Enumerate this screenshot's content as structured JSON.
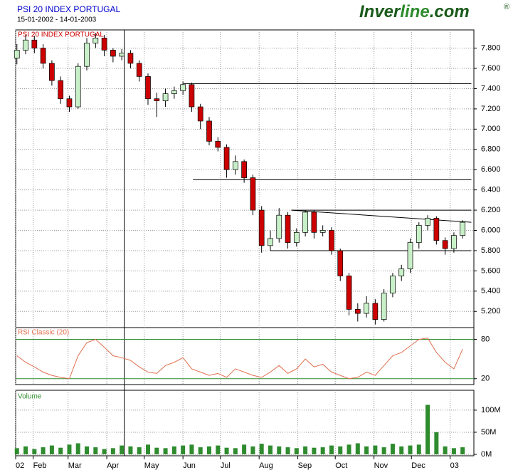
{
  "header": {
    "title": "PSI 20 INDEX PORTUGAL",
    "subtitle": "15-01-2002 - 14-01-2003",
    "logo": [
      "Inver",
      "line",
      ".com",
      "®"
    ]
  },
  "chart_data": [
    {
      "type": "candlestick",
      "label": "PSI 20 INDEX PORTUGAL",
      "up_color": "#c8f0c8",
      "down_color": "#cc0000",
      "x": [
        18,
        25,
        32,
        39,
        46,
        53,
        60,
        67,
        74,
        81,
        88,
        95,
        102,
        109,
        116,
        123,
        130,
        137,
        144,
        151,
        158,
        165,
        172,
        179,
        186,
        193,
        200,
        207,
        214,
        221,
        228,
        235,
        242,
        249,
        256,
        263,
        270,
        277,
        284,
        291,
        298,
        305,
        312,
        319,
        326,
        333,
        340,
        347,
        354,
        361,
        368,
        375
      ],
      "open": [
        7.7,
        7.78,
        7.88,
        7.8,
        7.65,
        7.48,
        7.3,
        7.22,
        7.62,
        7.85,
        7.9,
        7.78,
        7.72,
        7.75,
        7.65,
        7.52,
        7.3,
        7.28,
        7.35,
        7.38,
        7.44,
        7.22,
        7.08,
        6.88,
        6.82,
        6.6,
        6.68,
        6.52,
        6.2,
        5.85,
        5.92,
        6.15,
        5.88,
        5.98,
        6.18,
        5.98,
        6.0,
        5.8,
        5.55,
        5.22,
        5.18,
        5.28,
        5.12,
        5.38,
        5.55,
        5.62,
        5.88,
        6.05,
        6.12,
        5.9,
        5.82,
        5.95
      ],
      "high": [
        7.84,
        7.93,
        7.92,
        7.84,
        7.68,
        7.52,
        7.33,
        7.65,
        7.9,
        7.95,
        7.93,
        7.8,
        7.79,
        7.78,
        7.68,
        7.55,
        7.36,
        7.4,
        7.42,
        7.47,
        7.46,
        7.25,
        7.12,
        6.92,
        6.85,
        6.74,
        6.7,
        6.55,
        6.24,
        6.0,
        6.22,
        6.18,
        6.02,
        6.2,
        6.2,
        6.05,
        6.03,
        5.82,
        5.58,
        5.28,
        5.35,
        5.32,
        5.42,
        5.58,
        5.66,
        5.92,
        6.08,
        6.15,
        6.14,
        5.93,
        5.98,
        6.1
      ],
      "low": [
        7.64,
        7.74,
        7.75,
        7.6,
        7.43,
        7.25,
        7.17,
        7.2,
        7.58,
        7.8,
        7.72,
        7.66,
        7.68,
        7.6,
        7.47,
        7.24,
        7.12,
        7.22,
        7.3,
        7.34,
        7.17,
        7.0,
        6.84,
        6.78,
        6.52,
        6.55,
        6.47,
        6.15,
        5.78,
        5.8,
        5.88,
        5.82,
        5.84,
        5.94,
        5.92,
        5.94,
        5.76,
        5.5,
        5.16,
        5.1,
        5.14,
        5.07,
        5.1,
        5.34,
        5.5,
        5.58,
        5.82,
        6.0,
        5.86,
        5.76,
        5.78,
        5.92
      ],
      "close": [
        7.78,
        7.88,
        7.8,
        7.65,
        7.48,
        7.3,
        7.22,
        7.62,
        7.85,
        7.9,
        7.78,
        7.72,
        7.75,
        7.65,
        7.52,
        7.3,
        7.28,
        7.35,
        7.38,
        7.44,
        7.22,
        7.08,
        6.88,
        6.82,
        6.6,
        6.68,
        6.52,
        6.2,
        5.85,
        5.92,
        6.15,
        5.88,
        5.98,
        6.18,
        5.98,
        6.0,
        5.8,
        5.55,
        5.22,
        5.18,
        5.28,
        5.12,
        5.38,
        5.55,
        5.62,
        5.88,
        6.05,
        6.12,
        5.9,
        5.82,
        5.95,
        6.08
      ],
      "xlim": [
        17,
        384
      ],
      "xticks": [
        {
          "value": 17,
          "label": "02"
        },
        {
          "value": 31,
          "label": "Feb"
        },
        {
          "value": 59,
          "label": "Mar"
        },
        {
          "value": 90,
          "label": "Apr"
        },
        {
          "value": 120,
          "label": "May"
        },
        {
          "value": 151,
          "label": "Jun"
        },
        {
          "value": 181,
          "label": "Jul"
        },
        {
          "value": 212,
          "label": "Aug"
        },
        {
          "value": 243,
          "label": "Sep"
        },
        {
          "value": 273,
          "label": "Oct"
        },
        {
          "value": 304,
          "label": "Nov"
        },
        {
          "value": 334,
          "label": "Dec"
        },
        {
          "value": 365,
          "label": "03"
        }
      ],
      "ylim": [
        5.04,
        7.98
      ],
      "yticks": [
        {
          "value": 5.2,
          "label": "5.200"
        },
        {
          "value": 5.4,
          "label": "5.400"
        },
        {
          "value": 5.6,
          "label": "5.600"
        },
        {
          "value": 5.8,
          "label": "5.800"
        },
        {
          "value": 6.0,
          "label": "6.000"
        },
        {
          "value": 6.2,
          "label": "6.200"
        },
        {
          "value": 6.4,
          "label": "6.400"
        },
        {
          "value": 6.6,
          "label": "6.600"
        },
        {
          "value": 6.8,
          "label": "6.800"
        },
        {
          "value": 7.0,
          "label": "7.000"
        },
        {
          "value": 7.2,
          "label": "7.200"
        },
        {
          "value": 7.4,
          "label": "7.400"
        },
        {
          "value": 7.6,
          "label": "7.600"
        },
        {
          "value": 7.8,
          "label": "7.800"
        }
      ],
      "grid": true,
      "lines": [
        {
          "x": [
            151.5,
            382
          ],
          "y": [
            7.45,
            7.45
          ]
        },
        {
          "x": [
            159,
            382
          ],
          "y": [
            6.5,
            6.5
          ]
        },
        {
          "x": [
            238,
            382
          ],
          "y": [
            6.2,
            6.2
          ]
        },
        {
          "x": [
            221,
            382
          ],
          "y": [
            5.8,
            5.8
          ]
        },
        {
          "x": [
            238,
            382
          ],
          "y": [
            6.2,
            6.08
          ]
        }
      ],
      "vline": 104
    },
    {
      "type": "line",
      "label": "RSI Classic (20)",
      "color": "#e07050",
      "level_color": "#2e8b2e",
      "values": [
        55,
        45,
        38,
        30,
        25,
        22,
        20,
        55,
        75,
        80,
        68,
        55,
        52,
        48,
        38,
        30,
        28,
        40,
        45,
        52,
        35,
        30,
        25,
        28,
        22,
        35,
        30,
        25,
        22,
        30,
        40,
        28,
        35,
        50,
        38,
        42,
        30,
        25,
        20,
        22,
        30,
        25,
        40,
        55,
        60,
        70,
        80,
        82,
        60,
        45,
        35,
        65
      ],
      "ylim": [
        11,
        98
      ],
      "yticks": [
        20,
        80
      ]
    },
    {
      "type": "bar",
      "label": "Volume",
      "color": "#2e8b2e",
      "values": [
        14,
        18,
        12,
        16,
        20,
        15,
        22,
        25,
        18,
        16,
        12,
        14,
        20,
        18,
        16,
        22,
        15,
        14,
        18,
        20,
        22,
        16,
        18,
        20,
        15,
        14,
        22,
        18,
        24,
        20,
        18,
        16,
        14,
        18,
        15,
        16,
        20,
        18,
        22,
        25,
        18,
        20,
        16,
        24,
        18,
        20,
        22,
        112,
        50,
        18,
        14,
        16
      ],
      "ylim": [
        0,
        145
      ],
      "yticks": [
        {
          "value": 0,
          "label": "0M"
        },
        {
          "value": 50,
          "label": "50M"
        },
        {
          "value": 100,
          "label": "100M"
        }
      ]
    }
  ]
}
